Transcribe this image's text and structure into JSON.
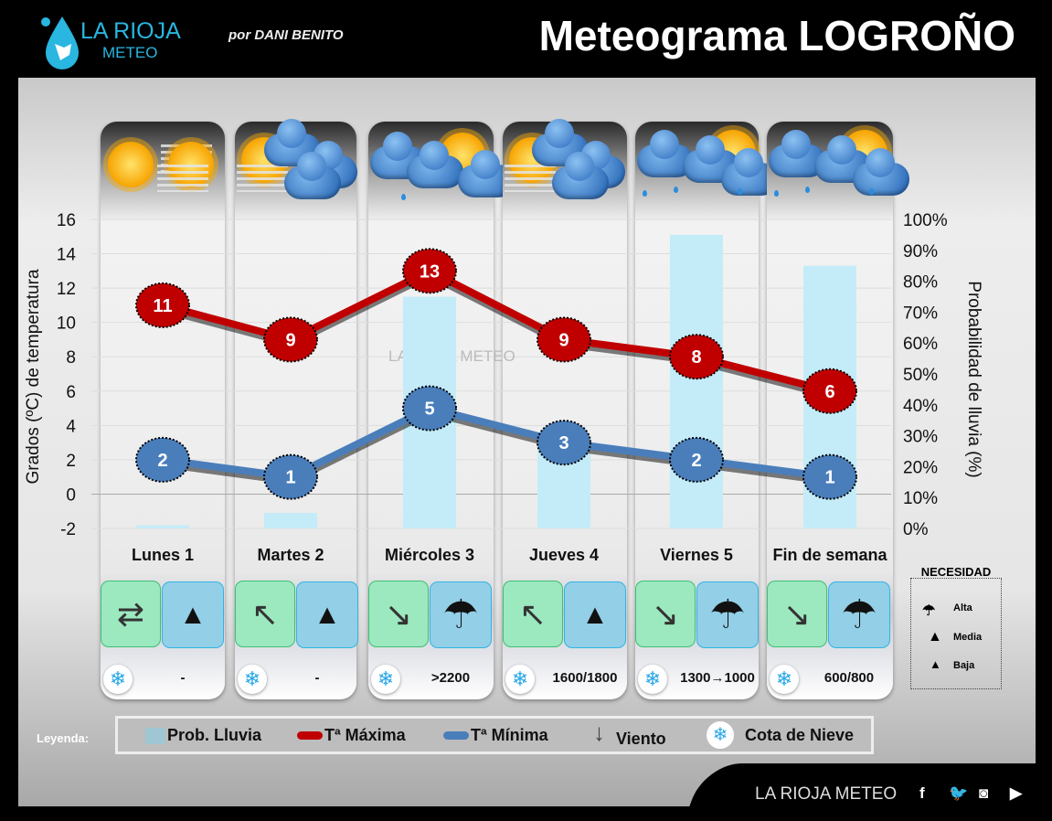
{
  "header": {
    "brand": "LA RIOJA",
    "brand_sub": "METEO",
    "author": "por DANI BENITO",
    "title": "Meteograma LOGROÑO"
  },
  "chart_data": {
    "type": "line+bar",
    "categories": [
      "Lunes 1",
      "Martes 2",
      "Miércoles 3",
      "Jueves 4",
      "Viernes 5",
      "Fin de semana"
    ],
    "ylabel_left": "Grados (ºC) de temperatura",
    "ylabel_right": "Probabilidad de lluvia (%)",
    "ylim_left": [
      -2,
      16
    ],
    "yticks_left": [
      "-2",
      "0",
      "2",
      "4",
      "6",
      "8",
      "10",
      "12",
      "14",
      "16"
    ],
    "ylim_right": [
      0,
      100
    ],
    "yticks_right": [
      "0%",
      "10%",
      "20%",
      "30%",
      "40%",
      "50%",
      "60%",
      "70%",
      "80%",
      "90%",
      "100%"
    ],
    "grid": true,
    "series": [
      {
        "name": "Tª Máxima",
        "type": "line",
        "axis": "left",
        "color": "#c00000",
        "values": [
          11,
          9,
          13,
          9,
          8,
          6
        ]
      },
      {
        "name": "Tª Mínima",
        "type": "line",
        "axis": "left",
        "color": "#4a7ebb",
        "values": [
          2,
          1,
          5,
          3,
          2,
          1
        ]
      },
      {
        "name": "Prob. Lluvia",
        "type": "bar",
        "axis": "right",
        "color": "#c4ecf8",
        "values": [
          1,
          5,
          75,
          25,
          95,
          85
        ]
      }
    ],
    "watermark": "LA RIOJA METEO"
  },
  "days": [
    {
      "weather": "sun-fog",
      "wind_dir": "variable",
      "wind_icon": "⇄",
      "umbrella": "Media",
      "cota": "-"
    },
    {
      "weather": "sun-fog-clouds",
      "wind_dir": "SE",
      "wind_icon": "↖",
      "umbrella": "Media",
      "cota": "-"
    },
    {
      "weather": "clouds-sun-drizzle",
      "wind_dir": "NO",
      "wind_icon": "↘",
      "umbrella": "Alta",
      "cota": ">2200"
    },
    {
      "weather": "sun-fog-clouds",
      "wind_dir": "SE",
      "wind_icon": "↖",
      "umbrella": "Media",
      "cota": "1600/1800"
    },
    {
      "weather": "clouds-sun-rain",
      "wind_dir": "NO",
      "wind_icon": "↘",
      "umbrella": "Alta",
      "cota": "1300→1000"
    },
    {
      "weather": "clouds-sun-rain",
      "wind_dir": "NNO",
      "wind_icon": "↘",
      "umbrella": "Alta",
      "cota": "600/800"
    }
  ],
  "necesidad": {
    "title": "NECESIDAD",
    "levels": [
      "Alta",
      "Media",
      "Baja"
    ]
  },
  "legend": {
    "label": "Leyenda:",
    "items": [
      "Prob. Lluvia",
      "Tª Máxima",
      "Tª Mínima",
      "Viento",
      "Cota de Nieve"
    ]
  },
  "footer": {
    "brand": "LA RIOJA METEO",
    "social": [
      "f",
      "twitter",
      "instagram",
      "youtube"
    ]
  }
}
